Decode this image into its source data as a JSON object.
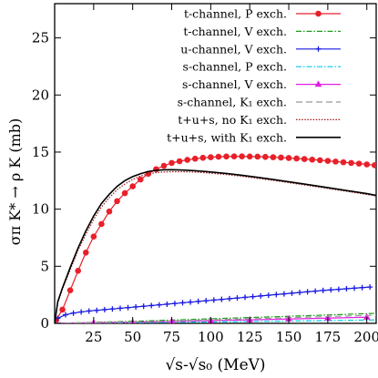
{
  "chart_data": {
    "type": "line",
    "xlabel": "√s-√s₀ (MeV)",
    "ylabel": "σπ K* → ρ K (mb)",
    "xlim": [
      0,
      206
    ],
    "ylim": [
      0,
      28
    ],
    "xticks": [
      25,
      50,
      75,
      100,
      125,
      150,
      175,
      200
    ],
    "yticks": [
      0,
      5,
      10,
      15,
      20,
      25
    ],
    "legend_position": "top-right",
    "series": [
      {
        "name": "t-channel, P exch.",
        "color": "#e8202a",
        "style": "solid",
        "marker": "circle",
        "x": [
          1,
          5,
          10,
          15,
          20,
          25,
          30,
          35,
          40,
          45,
          50,
          55,
          60,
          65,
          70,
          75,
          80,
          85,
          90,
          95,
          100,
          105,
          110,
          115,
          120,
          125,
          130,
          135,
          140,
          145,
          150,
          155,
          160,
          165,
          170,
          175,
          180,
          185,
          190,
          195,
          200,
          205
        ],
        "y": [
          0.3,
          1.2,
          2.9,
          4.6,
          6.2,
          7.6,
          8.7,
          9.8,
          10.7,
          11.4,
          12.0,
          12.6,
          13.1,
          13.5,
          13.8,
          14.05,
          14.2,
          14.32,
          14.42,
          14.5,
          14.55,
          14.59,
          14.61,
          14.62,
          14.62,
          14.61,
          14.6,
          14.58,
          14.55,
          14.52,
          14.48,
          14.44,
          14.39,
          14.34,
          14.29,
          14.23,
          14.17,
          14.11,
          14.05,
          13.99,
          13.92,
          13.85
        ]
      },
      {
        "name": "t-channel, V exch.",
        "color": "#1a9c1a",
        "style": "dashdot",
        "marker": "none",
        "x": [
          0,
          50,
          100,
          150,
          206
        ],
        "y": [
          0.0,
          0.18,
          0.4,
          0.62,
          0.88
        ]
      },
      {
        "name": "u-channel, V exch.",
        "color": "#1a1ae0",
        "style": "solid",
        "marker": "plus",
        "x": [
          2,
          7,
          12,
          17,
          22,
          27,
          32,
          37,
          42,
          47,
          52,
          57,
          62,
          67,
          72,
          77,
          82,
          87,
          92,
          97,
          102,
          107,
          112,
          117,
          122,
          127,
          132,
          137,
          142,
          147,
          152,
          157,
          162,
          167,
          172,
          177,
          182,
          187,
          192,
          197,
          202
        ],
        "y": [
          0.45,
          0.75,
          0.9,
          1.0,
          1.08,
          1.14,
          1.2,
          1.26,
          1.32,
          1.38,
          1.44,
          1.5,
          1.56,
          1.62,
          1.68,
          1.74,
          1.8,
          1.86,
          1.92,
          1.98,
          2.04,
          2.1,
          2.16,
          2.22,
          2.28,
          2.34,
          2.4,
          2.46,
          2.52,
          2.58,
          2.64,
          2.7,
          2.76,
          2.82,
          2.88,
          2.93,
          2.98,
          3.03,
          3.08,
          3.13,
          3.18
        ]
      },
      {
        "name": "s-channel, P exch.",
        "color": "#00c8e8",
        "style": "dashdot",
        "marker": "none",
        "x": [
          0,
          50,
          100,
          150,
          206
        ],
        "y": [
          0.0,
          0.05,
          0.12,
          0.2,
          0.3
        ]
      },
      {
        "name": "s-channel, V exch.",
        "color": "#e020e0",
        "style": "solid",
        "marker": "triangle",
        "x": [
          0,
          25,
          50,
          75,
          100,
          125,
          150,
          175,
          200
        ],
        "y": [
          0.0,
          0.05,
          0.1,
          0.17,
          0.24,
          0.31,
          0.38,
          0.46,
          0.54
        ]
      },
      {
        "name": "s-channel, K₁ exch.",
        "color": "#999999",
        "style": "dashed",
        "marker": "none",
        "x": [
          0,
          50,
          100,
          150,
          206
        ],
        "y": [
          0.0,
          0.12,
          0.3,
          0.5,
          0.72
        ]
      },
      {
        "name": "t+u+s, no K₁ exch.",
        "color": "#a01818",
        "style": "dotted",
        "marker": "none",
        "x": [
          0,
          2,
          5,
          10,
          15,
          20,
          25,
          30,
          35,
          40,
          45,
          50,
          55,
          60,
          65,
          70,
          75,
          80,
          85,
          90,
          95,
          100,
          110,
          120,
          130,
          140,
          150,
          160,
          170,
          180,
          190,
          200,
          206
        ],
        "y": [
          0,
          1.8,
          3.0,
          4.7,
          6.4,
          7.8,
          9.1,
          10.2,
          11.0,
          11.7,
          12.2,
          12.6,
          12.9,
          13.1,
          13.2,
          13.25,
          13.28,
          13.28,
          13.27,
          13.24,
          13.2,
          13.15,
          13.03,
          12.88,
          12.7,
          12.52,
          12.32,
          12.12,
          11.92,
          11.71,
          11.5,
          11.29,
          11.15
        ]
      },
      {
        "name": "t+u+s, with K₁ exch.",
        "color": "#000000",
        "style": "solid",
        "marker": "none",
        "x": [
          0,
          2,
          5,
          10,
          15,
          20,
          25,
          30,
          35,
          40,
          45,
          50,
          55,
          60,
          65,
          70,
          75,
          80,
          85,
          90,
          95,
          100,
          110,
          120,
          130,
          140,
          150,
          160,
          170,
          180,
          190,
          200,
          206
        ],
        "y": [
          0,
          1.9,
          3.1,
          4.9,
          6.6,
          8.1,
          9.4,
          10.5,
          11.3,
          12.0,
          12.5,
          12.85,
          13.1,
          13.3,
          13.4,
          13.45,
          13.46,
          13.44,
          13.41,
          13.37,
          13.32,
          13.26,
          13.13,
          12.97,
          12.79,
          12.6,
          12.4,
          12.2,
          11.99,
          11.78,
          11.57,
          11.36,
          11.21
        ]
      }
    ]
  }
}
